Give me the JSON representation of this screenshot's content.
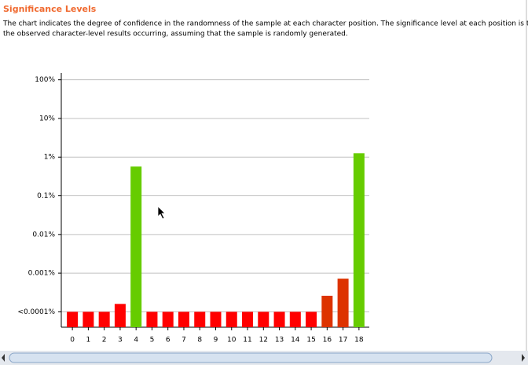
{
  "header": {
    "title": "Significance Levels",
    "description": [
      "The chart indicates the degree of confidence in the randomness of the sample at each character position. The significance level at each position is the probability",
      "the observed character-level results occurring, assuming that the sample is randomly generated."
    ]
  },
  "chart_data": {
    "type": "bar",
    "categories": [
      "0",
      "1",
      "2",
      "3",
      "4",
      "5",
      "6",
      "7",
      "8",
      "9",
      "10",
      "11",
      "12",
      "13",
      "14",
      "15",
      "16",
      "17",
      "18"
    ],
    "values": [
      0.0001,
      0.0001,
      0.0001,
      0.00016,
      0.57,
      0.0001,
      0.0001,
      0.0001,
      0.0001,
      0.0001,
      0.0001,
      0.0001,
      0.0001,
      0.0001,
      0.0001,
      0.0001,
      0.00026,
      0.00072,
      1.26
    ],
    "colors": [
      "#ff0000",
      "#ff0000",
      "#ff0000",
      "#ff0000",
      "#66cc00",
      "#ff0000",
      "#ff0000",
      "#ff0000",
      "#ff0000",
      "#ff0000",
      "#ff0000",
      "#ff0000",
      "#ff0000",
      "#ff0000",
      "#ff0000",
      "#ff0000",
      "#dd3300",
      "#dd3300",
      "#66cc00"
    ],
    "log_scale": true,
    "ylim": [
      4e-05,
      150
    ],
    "yticks": [
      {
        "value": 0.0001,
        "label": "<0.0001%"
      },
      {
        "value": 0.001,
        "label": "0.001%"
      },
      {
        "value": 0.01,
        "label": "0.01%"
      },
      {
        "value": 0.1,
        "label": "0.1%"
      },
      {
        "value": 1,
        "label": "1%"
      },
      {
        "value": 10,
        "label": "10%"
      },
      {
        "value": 100,
        "label": "100%"
      }
    ],
    "grid": true
  }
}
